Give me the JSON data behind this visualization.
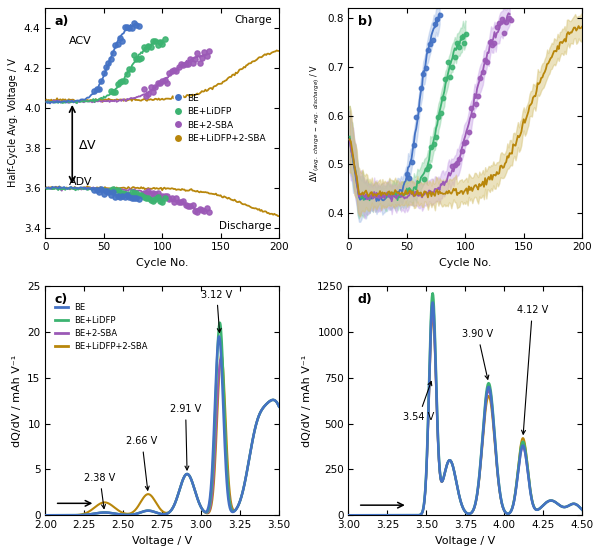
{
  "colors": {
    "BE": "#4472C4",
    "BE+LiDFP": "#3CB371",
    "BE+2-SBA": "#9B59B6",
    "BE+LiDFP+2-SBA": "#B8860B"
  },
  "colors_light": {
    "BE": "#A8C0E8",
    "BE+LiDFP": "#90D4A8",
    "BE+2-SBA": "#CBA8E8",
    "BE+LiDFP+2-SBA": "#D4C070"
  },
  "legend_labels": [
    "BE",
    "BE+LiDFP",
    "BE+2-SBA",
    "BE+LiDFP+2-SBA"
  ],
  "subplot_a": {
    "xlabel": "Cycle No.",
    "ylabel": "Half-Cycle Avg. Voltage / V",
    "xlim": [
      0,
      200
    ],
    "ylim": [
      3.35,
      4.5
    ],
    "yticks": [
      3.4,
      3.6,
      3.8,
      4.0,
      4.2,
      4.4
    ]
  },
  "subplot_b": {
    "xlabel": "Cycle No.",
    "ylabel": "ΔV(avg. charge - avg. discharge) / V",
    "xlim": [
      0,
      200
    ],
    "ylim": [
      0.35,
      0.82
    ],
    "yticks": [
      0.4,
      0.5,
      0.6,
      0.7,
      0.8
    ]
  },
  "subplot_c": {
    "xlabel": "Voltage / V",
    "ylabel": "dQ/dV / mAh V⁻¹",
    "xlim": [
      2.0,
      3.5
    ],
    "ylim": [
      0,
      25
    ],
    "yticks": [
      0,
      5,
      10,
      15,
      20,
      25
    ]
  },
  "subplot_d": {
    "xlabel": "Voltage / V",
    "ylabel": "dQ/dV / mAh V⁻¹",
    "xlim": [
      3.0,
      4.5
    ],
    "ylim": [
      0,
      1250
    ],
    "yticks": [
      0,
      250,
      500,
      750,
      1000,
      1250
    ]
  }
}
